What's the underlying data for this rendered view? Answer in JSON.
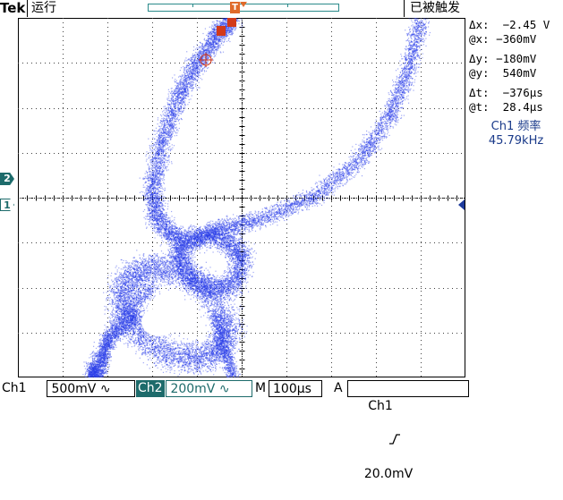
{
  "header": {
    "brand": "Tek",
    "run_state": "运行",
    "trigger_state": "已被触发"
  },
  "markers": {
    "ch2": "2",
    "ch1": "1",
    "trigger_pos": "T"
  },
  "readouts": {
    "dx": "Δx:  −2.45 V",
    "atx": "@x: −360mV",
    "dy": "Δy: −180mV",
    "aty": "@y:  540mV",
    "dt": "Δt:  −376μs",
    "att": "@t:  28.4μs",
    "freq_label": "Ch1 频率",
    "freq_value": "45.79kHz"
  },
  "footer": {
    "ch1_label": "Ch1",
    "ch1_scale": " 500mV ∿",
    "ch2_label": "Ch2",
    "ch2_scale": " 200mV ∿",
    "m_label": "M",
    "timebase": "100μs",
    "a_label": "A",
    "trigger_source": " Ch1",
    "trigger_slope_icon": "rising-edge-icon",
    "trigger_level": "20.0mV"
  },
  "colors": {
    "trace": "#2a3ee8",
    "ch2_accent": "#1d6b6b",
    "cursor": "#d23a1a",
    "grid": "#404040"
  }
}
